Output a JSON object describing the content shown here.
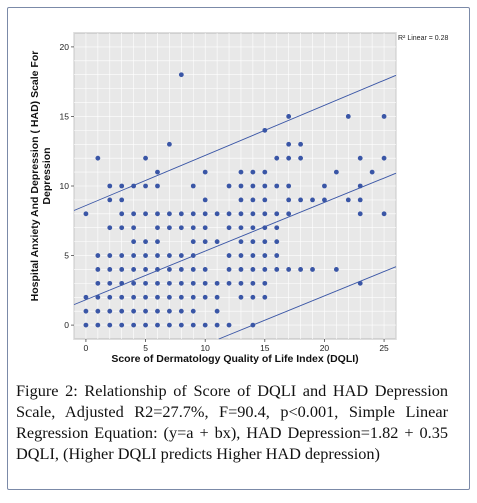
{
  "chart_data": {
    "type": "scatter",
    "xlabel": "Score of Dermatology Quality of Life Index (DQLI)",
    "ylabel": "Hospital Anxiety And Depression ( HAD) Scale For Depression",
    "xlim": [
      -1,
      26
    ],
    "ylim": [
      -1,
      21
    ],
    "xticks": [
      0,
      5,
      10,
      15,
      20,
      25
    ],
    "yticks": [
      0,
      5,
      10,
      15,
      20
    ],
    "grid": true,
    "colors": {
      "point": "#3a56a6",
      "line": "#3a56a6",
      "plot_bg": "#e8e8e8",
      "grid": "#ffffff"
    },
    "annotation": "R² Linear = 0.28",
    "fit_line": {
      "intercept": 1.82,
      "slope": 0.35
    },
    "ci_upper": {
      "intercept": 8.6,
      "slope": 0.36
    },
    "ci_lower": {
      "intercept": -4.9,
      "slope": 0.35
    },
    "points": [
      [
        0,
        0
      ],
      [
        0,
        1
      ],
      [
        0,
        2
      ],
      [
        0,
        8
      ],
      [
        1,
        0
      ],
      [
        1,
        1
      ],
      [
        1,
        2
      ],
      [
        1,
        3
      ],
      [
        1,
        4
      ],
      [
        1,
        5
      ],
      [
        1,
        12
      ],
      [
        2,
        0
      ],
      [
        2,
        1
      ],
      [
        2,
        2
      ],
      [
        2,
        3
      ],
      [
        2,
        4
      ],
      [
        2,
        5
      ],
      [
        2,
        7
      ],
      [
        2,
        9
      ],
      [
        2,
        10
      ],
      [
        3,
        0
      ],
      [
        3,
        1
      ],
      [
        3,
        2
      ],
      [
        3,
        3
      ],
      [
        3,
        4
      ],
      [
        3,
        5
      ],
      [
        3,
        7
      ],
      [
        3,
        8
      ],
      [
        3,
        9
      ],
      [
        3,
        10
      ],
      [
        4,
        0
      ],
      [
        4,
        1
      ],
      [
        4,
        2
      ],
      [
        4,
        3
      ],
      [
        4,
        4
      ],
      [
        4,
        5
      ],
      [
        4,
        6
      ],
      [
        4,
        7
      ],
      [
        4,
        8
      ],
      [
        4,
        10
      ],
      [
        5,
        0
      ],
      [
        5,
        1
      ],
      [
        5,
        2
      ],
      [
        5,
        3
      ],
      [
        5,
        4
      ],
      [
        5,
        5
      ],
      [
        5,
        6
      ],
      [
        5,
        8
      ],
      [
        5,
        10
      ],
      [
        5,
        12
      ],
      [
        6,
        0
      ],
      [
        6,
        1
      ],
      [
        6,
        2
      ],
      [
        6,
        3
      ],
      [
        6,
        4
      ],
      [
        6,
        5
      ],
      [
        6,
        6
      ],
      [
        6,
        7
      ],
      [
        6,
        8
      ],
      [
        6,
        10
      ],
      [
        6,
        11
      ],
      [
        7,
        0
      ],
      [
        7,
        1
      ],
      [
        7,
        2
      ],
      [
        7,
        3
      ],
      [
        7,
        4
      ],
      [
        7,
        5
      ],
      [
        7,
        7
      ],
      [
        7,
        8
      ],
      [
        7,
        13
      ],
      [
        8,
        0
      ],
      [
        8,
        1
      ],
      [
        8,
        2
      ],
      [
        8,
        3
      ],
      [
        8,
        4
      ],
      [
        8,
        5
      ],
      [
        8,
        7
      ],
      [
        8,
        8
      ],
      [
        8,
        18
      ],
      [
        9,
        0
      ],
      [
        9,
        1
      ],
      [
        9,
        2
      ],
      [
        9,
        3
      ],
      [
        9,
        4
      ],
      [
        9,
        5
      ],
      [
        9,
        6
      ],
      [
        9,
        7
      ],
      [
        9,
        8
      ],
      [
        9,
        10
      ],
      [
        10,
        0
      ],
      [
        10,
        2
      ],
      [
        10,
        3
      ],
      [
        10,
        4
      ],
      [
        10,
        6
      ],
      [
        10,
        7
      ],
      [
        10,
        8
      ],
      [
        10,
        9
      ],
      [
        10,
        11
      ],
      [
        11,
        0
      ],
      [
        11,
        1
      ],
      [
        11,
        2
      ],
      [
        11,
        3
      ],
      [
        11,
        6
      ],
      [
        11,
        8
      ],
      [
        12,
        0
      ],
      [
        12,
        3
      ],
      [
        12,
        4
      ],
      [
        12,
        5
      ],
      [
        12,
        7
      ],
      [
        12,
        8
      ],
      [
        12,
        10
      ],
      [
        13,
        2
      ],
      [
        13,
        3
      ],
      [
        13,
        4
      ],
      [
        13,
        5
      ],
      [
        13,
        6
      ],
      [
        13,
        7
      ],
      [
        13,
        8
      ],
      [
        13,
        9
      ],
      [
        13,
        10
      ],
      [
        13,
        11
      ],
      [
        14,
        0
      ],
      [
        14,
        2
      ],
      [
        14,
        3
      ],
      [
        14,
        4
      ],
      [
        14,
        5
      ],
      [
        14,
        6
      ],
      [
        14,
        7
      ],
      [
        14,
        8
      ],
      [
        14,
        9
      ],
      [
        14,
        10
      ],
      [
        14,
        11
      ],
      [
        15,
        2
      ],
      [
        15,
        3
      ],
      [
        15,
        4
      ],
      [
        15,
        5
      ],
      [
        15,
        6
      ],
      [
        15,
        7
      ],
      [
        15,
        8
      ],
      [
        15,
        9
      ],
      [
        15,
        10
      ],
      [
        15,
        11
      ],
      [
        15,
        14
      ],
      [
        16,
        4
      ],
      [
        16,
        5
      ],
      [
        16,
        6
      ],
      [
        16,
        7
      ],
      [
        16,
        8
      ],
      [
        16,
        10
      ],
      [
        16,
        12
      ],
      [
        17,
        4
      ],
      [
        17,
        8
      ],
      [
        17,
        9
      ],
      [
        17,
        10
      ],
      [
        17,
        12
      ],
      [
        17,
        13
      ],
      [
        17,
        15
      ],
      [
        18,
        4
      ],
      [
        18,
        9
      ],
      [
        18,
        12
      ],
      [
        18,
        13
      ],
      [
        19,
        4
      ],
      [
        19,
        9
      ],
      [
        20,
        9
      ],
      [
        20,
        10
      ],
      [
        21,
        4
      ],
      [
        21,
        11
      ],
      [
        22,
        9
      ],
      [
        22,
        15
      ],
      [
        23,
        3
      ],
      [
        23,
        8
      ],
      [
        23,
        9
      ],
      [
        23,
        10
      ],
      [
        23,
        12
      ],
      [
        24,
        11
      ],
      [
        25,
        8
      ],
      [
        25,
        12
      ],
      [
        25,
        15
      ]
    ]
  },
  "caption": {
    "label": "Figure 2:",
    "text": " Relationship of Score of DQLI and HAD Depression Scale, Adjusted R2=27.7%, F=90.4, p<0.001, Simple Linear Regression Equation: (y=a + bx), HAD Depression=1.82 + 0.35 DQLI, (Higher DQLI predicts Higher HAD depression)"
  }
}
